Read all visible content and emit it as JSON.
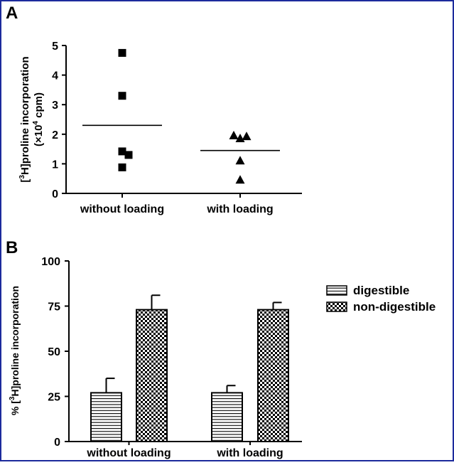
{
  "chart_data": [
    {
      "panel": "A",
      "type": "scatter",
      "ylabel_parts": [
        "[",
        "3",
        "H]proline incorporation"
      ],
      "ylabel2_parts": [
        "(×10",
        "4",
        " cpm)"
      ],
      "categories": [
        "without loading",
        "with loading"
      ],
      "ylim": [
        0,
        5
      ],
      "yticks": [
        "0",
        "1",
        "2",
        "3",
        "4",
        "5"
      ],
      "series": [
        {
          "category": "without loading",
          "marker": "square",
          "points": [
            {
              "x": 0.0,
              "y": 4.75
            },
            {
              "x": 0.0,
              "y": 3.3
            },
            {
              "x": 0.0,
              "y": 1.42
            },
            {
              "x": 0.18,
              "y": 1.3
            },
            {
              "x": 0.0,
              "y": 0.88
            }
          ]
        },
        {
          "category": "with loading",
          "marker": "triangle",
          "points": [
            {
              "x": -0.18,
              "y": 1.95
            },
            {
              "x": 0.0,
              "y": 1.85
            },
            {
              "x": 0.18,
              "y": 1.92
            },
            {
              "x": 0.0,
              "y": 1.1
            },
            {
              "x": 0.0,
              "y": 0.45
            }
          ]
        }
      ],
      "means": [
        2.3,
        1.45
      ]
    },
    {
      "panel": "B",
      "type": "bar",
      "ylabel_parts": [
        "% [",
        "3",
        "H]proline incorporation"
      ],
      "categories": [
        "without loading",
        "with loading"
      ],
      "ylim": [
        0,
        100
      ],
      "yticks": [
        "0",
        "25",
        "50",
        "75",
        "100"
      ],
      "series": [
        {
          "name": "digestible",
          "pattern": "horizontal-lines",
          "values": [
            27,
            27
          ],
          "errors": [
            8,
            4
          ]
        },
        {
          "name": "non-digestible",
          "pattern": "checker",
          "values": [
            73,
            73
          ],
          "errors": [
            8,
            4
          ]
        }
      ],
      "legend_position": "right"
    }
  ]
}
